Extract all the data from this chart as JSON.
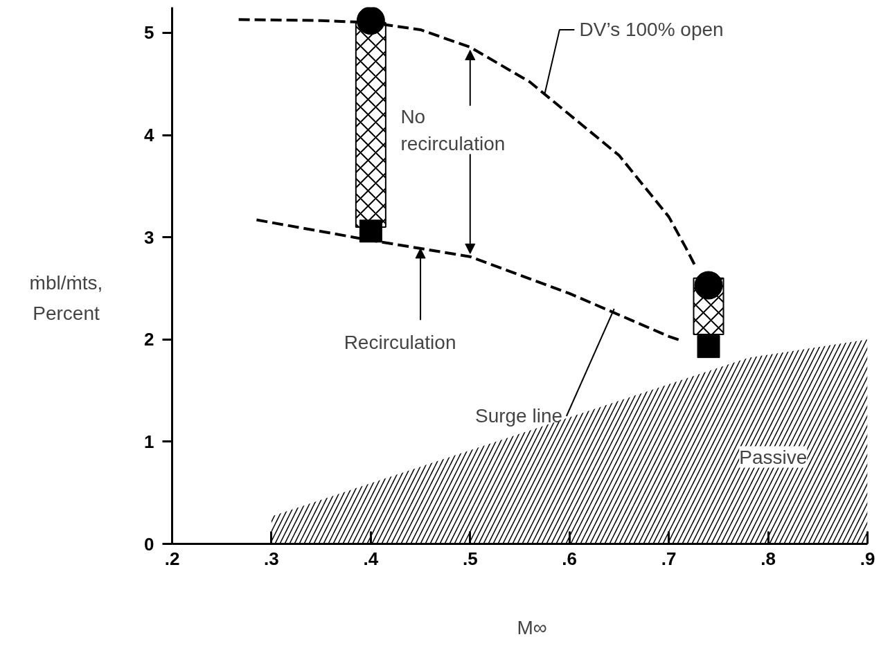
{
  "chart_data": {
    "type": "line",
    "xlabel": "M∞",
    "ylabel": "ṁbl/ṁts, Percent",
    "xlim": [
      0.2,
      0.9
    ],
    "ylim": [
      0,
      5.25
    ],
    "xticks": [
      {
        "value": 0.2,
        "label": ".2"
      },
      {
        "value": 0.3,
        "label": ".3"
      },
      {
        "value": 0.4,
        "label": ".4"
      },
      {
        "value": 0.5,
        "label": ".5"
      },
      {
        "value": 0.6,
        "label": ".6"
      },
      {
        "value": 0.7,
        "label": ".7"
      },
      {
        "value": 0.8,
        "label": ".8"
      },
      {
        "value": 0.9,
        "label": ".9"
      }
    ],
    "yticks": [
      0,
      1,
      2,
      3,
      4,
      5
    ],
    "grid": false,
    "line_style": "dashed",
    "series": [
      {
        "type": "area",
        "x": [
          0.3,
          0.78,
          0.9
        ],
        "values": [
          0.27,
          1.82,
          2.0
        ],
        "color": "#000000"
      },
      {
        "type": "bar",
        "x": [
          0.4,
          0.74
        ],
        "base": [
          3.1,
          2.05
        ],
        "values": [
          2.0,
          0.55
        ],
        "color": "#000000"
      },
      {
        "x": [
          0.267,
          0.35,
          0.4,
          0.45,
          0.5,
          0.56,
          0.6,
          0.65,
          0.7,
          0.717,
          0.726
        ],
        "values": [
          5.13,
          5.12,
          5.1,
          5.03,
          4.86,
          4.52,
          4.2,
          3.8,
          3.2,
          2.9,
          2.73
        ],
        "color": "#000000"
      },
      {
        "x": [
          0.285,
          0.4,
          0.5,
          0.6,
          0.7,
          0.712
        ],
        "values": [
          3.17,
          2.97,
          2.81,
          2.45,
          2.03,
          1.99
        ],
        "color": "#000000"
      },
      {
        "type": "scatter",
        "x": [
          0.4,
          0.74
        ],
        "values": [
          5.12,
          2.53
        ],
        "marker": "circle",
        "color": "#000000"
      },
      {
        "type": "scatter",
        "x": [
          0.4,
          0.74
        ],
        "values": [
          3.06,
          1.93
        ],
        "marker": "square",
        "color": "#000000"
      }
    ],
    "annotations": [
      {
        "text": "DV’s 100% open",
        "x": 0.575,
        "y": 4.4
      },
      "No\nrecirculation",
      {
        "text": "Recirculation",
        "x": 0.45,
        "y": 2.89
      },
      {
        "text": "Surge line",
        "x": 0.645,
        "y": 2.3
      },
      "Passive"
    ]
  }
}
